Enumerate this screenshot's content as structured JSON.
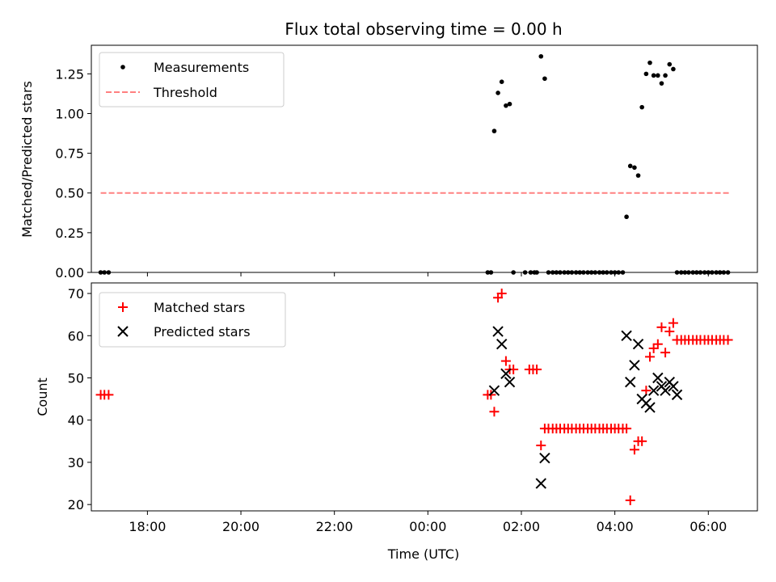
{
  "chart_data": [
    {
      "type": "scatter",
      "title": "Flux total observing time = 0.00 h",
      "xlabel": "",
      "ylabel": "Matched/Predicted stars",
      "xlim": [
        -7.2,
        7.05
      ],
      "ylim": [
        0,
        1.43
      ],
      "x_ticks": [
        -6,
        -4,
        -2,
        0,
        2,
        4,
        6
      ],
      "y_ticks": [
        0,
        0.25,
        0.5,
        0.75,
        1.0,
        1.25
      ],
      "y_tick_labels": [
        "0.00",
        "0.25",
        "0.50",
        "0.75",
        "1.00",
        "1.25"
      ],
      "legend": [
        "Measurements",
        "Threshold"
      ],
      "legend_position": "upper left",
      "colors": {
        "measurements": "#000000",
        "threshold": "#ff8080"
      },
      "threshold": {
        "value": 0.5,
        "x": [
          -7.0,
          6.45
        ]
      },
      "series": [
        {
          "name": "Measurements",
          "x": [
            -7.0,
            -6.92,
            -6.83,
            1.28,
            1.35,
            1.42,
            1.5,
            1.58,
            1.67,
            1.75,
            1.83,
            2.08,
            2.2,
            2.28,
            2.33,
            2.42,
            2.5,
            2.58,
            2.67,
            2.75,
            2.83,
            2.92,
            3.0,
            3.08,
            3.17,
            3.25,
            3.33,
            3.42,
            3.5,
            3.58,
            3.67,
            3.75,
            3.83,
            3.92,
            4.0,
            4.08,
            4.17,
            4.25,
            4.33,
            4.42,
            4.5,
            4.58,
            4.67,
            4.75,
            4.83,
            4.92,
            5.0,
            5.08,
            5.17,
            5.25,
            5.33,
            5.42,
            5.5,
            5.58,
            5.67,
            5.75,
            5.83,
            5.92,
            6.0,
            6.08,
            6.17,
            6.25,
            6.33,
            6.42
          ],
          "y": [
            0,
            0,
            0,
            0,
            0,
            0.89,
            1.13,
            1.2,
            1.05,
            1.06,
            0,
            0,
            0,
            0,
            0,
            1.36,
            1.22,
            0,
            0,
            0,
            0,
            0,
            0,
            0,
            0,
            0,
            0,
            0,
            0,
            0,
            0,
            0,
            0,
            0,
            0,
            0,
            0,
            0.35,
            0.67,
            0.66,
            0.61,
            1.04,
            1.25,
            1.32,
            1.24,
            1.24,
            1.19,
            1.24,
            1.31,
            1.28,
            0,
            0,
            0,
            0,
            0,
            0,
            0,
            0,
            0,
            0,
            0,
            0,
            0,
            0
          ]
        }
      ]
    },
    {
      "type": "scatter",
      "title": "",
      "xlabel": "Time (UTC)",
      "ylabel": "Count",
      "xlim": [
        -7.2,
        7.05
      ],
      "ylim": [
        18.5,
        72.5
      ],
      "x_ticks": [
        -6,
        -4,
        -2,
        0,
        2,
        4,
        6
      ],
      "x_tick_labels": [
        "18:00",
        "20:00",
        "22:00",
        "00:00",
        "02:00",
        "04:00",
        "06:00"
      ],
      "y_ticks": [
        20,
        30,
        40,
        50,
        60,
        70
      ],
      "y_tick_labels": [
        "20",
        "30",
        "40",
        "50",
        "60",
        "70"
      ],
      "legend": [
        "Matched stars",
        "Predicted stars"
      ],
      "legend_position": "upper left",
      "colors": {
        "matched": "#ff0000",
        "predicted": "#000000"
      },
      "series": [
        {
          "name": "Matched stars",
          "marker": "plus",
          "x": [
            -7.0,
            -6.92,
            -6.83,
            1.28,
            1.35,
            1.42,
            1.5,
            1.58,
            1.67,
            1.75,
            1.83,
            2.17,
            2.25,
            2.33,
            2.42,
            2.5,
            2.58,
            2.67,
            2.75,
            2.83,
            2.92,
            3.0,
            3.08,
            3.17,
            3.25,
            3.33,
            3.42,
            3.5,
            3.58,
            3.67,
            3.75,
            3.83,
            3.92,
            4.0,
            4.08,
            4.17,
            4.25,
            4.33,
            4.42,
            4.5,
            4.58,
            4.67,
            4.75,
            4.83,
            4.92,
            5.0,
            5.08,
            5.17,
            5.25,
            5.33,
            5.42,
            5.5,
            5.58,
            5.67,
            5.75,
            5.83,
            5.92,
            6.0,
            6.08,
            6.17,
            6.25,
            6.33,
            6.42
          ],
          "y": [
            46,
            46,
            46,
            46,
            46,
            42,
            69,
            70,
            54,
            52,
            52,
            52,
            52,
            52,
            34,
            38,
            38,
            38,
            38,
            38,
            38,
            38,
            38,
            38,
            38,
            38,
            38,
            38,
            38,
            38,
            38,
            38,
            38,
            38,
            38,
            38,
            38,
            21,
            33,
            35,
            35,
            47,
            55,
            57,
            58,
            62,
            56,
            61,
            63,
            59,
            59,
            59,
            59,
            59,
            59,
            59,
            59,
            59,
            59,
            59,
            59,
            59,
            59
          ]
        },
        {
          "name": "Predicted stars",
          "marker": "x",
          "x": [
            1.42,
            1.5,
            1.58,
            1.67,
            1.75,
            2.42,
            2.5,
            4.25,
            4.33,
            4.42,
            4.5,
            4.58,
            4.67,
            4.75,
            4.83,
            4.92,
            5.0,
            5.08,
            5.17,
            5.25,
            5.33
          ],
          "y": [
            47,
            61,
            58,
            51,
            49,
            25,
            31,
            60,
            49,
            53,
            58,
            45,
            44,
            43,
            47,
            50,
            48,
            47,
            49,
            48,
            46
          ]
        }
      ]
    }
  ]
}
